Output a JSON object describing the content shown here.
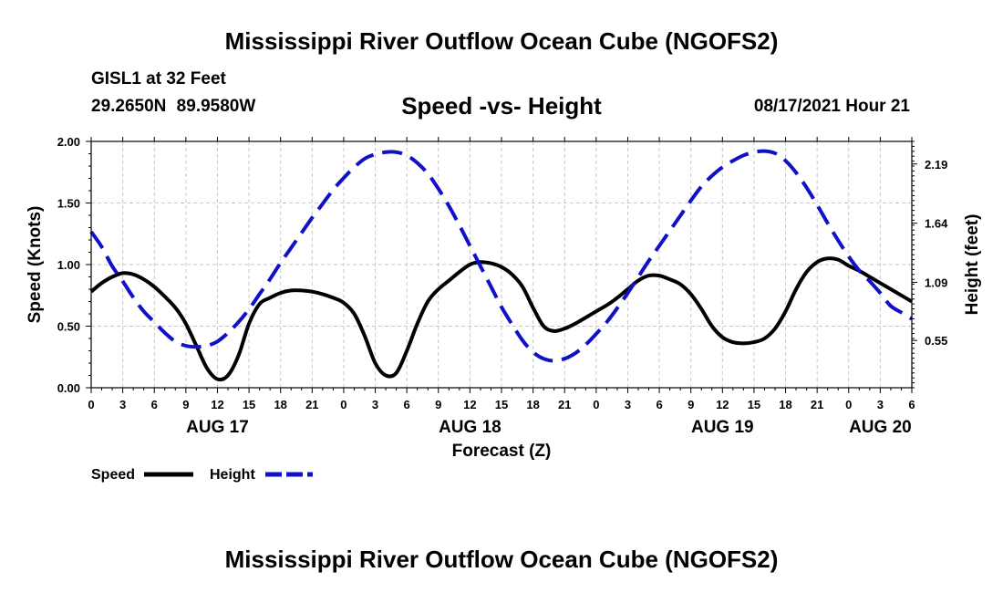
{
  "header": {
    "title": "Mississippi River Outflow Ocean Cube (NGOFS2)",
    "station": "GISL1 at 32 Feet",
    "coords": "29.2650N  89.9580W",
    "subtitle": "Speed -vs- Height",
    "timestamp": "08/17/2021 Hour 21"
  },
  "footer": {
    "title": "Mississippi River Outflow Ocean Cube (NGOFS2)"
  },
  "colors": {
    "speed": "#000000",
    "height": "#1010c8",
    "grid": "#c8c8c8"
  },
  "chart_data": {
    "type": "line",
    "title": "Speed -vs- Height",
    "xlabel": "Forecast (Z)",
    "ylabel": "Speed (Knots)",
    "y2label": "Height (feet)",
    "xlim": [
      0,
      78
    ],
    "ylim": [
      0,
      2.0
    ],
    "y2lim": [
      0.11,
      2.4
    ],
    "x_ticks": [
      0,
      3,
      6,
      9,
      12,
      15,
      18,
      21,
      24,
      27,
      30,
      33,
      36,
      39,
      42,
      45,
      48,
      51,
      54,
      57,
      60,
      63,
      66,
      69,
      72,
      75,
      78
    ],
    "x_tick_labels": [
      "0",
      "3",
      "6",
      "9",
      "12",
      "15",
      "18",
      "21",
      "0",
      "3",
      "6",
      "9",
      "12",
      "15",
      "18",
      "21",
      "0",
      "3",
      "6",
      "9",
      "12",
      "15",
      "18",
      "21",
      "0",
      "3",
      "6"
    ],
    "day_labels": [
      {
        "x": 12,
        "label": "AUG 17"
      },
      {
        "x": 36,
        "label": "AUG 18"
      },
      {
        "x": 60,
        "label": "AUG 19"
      },
      {
        "x": 75,
        "label": "AUG 20"
      }
    ],
    "y_ticks": [
      0,
      0.5,
      1.0,
      1.5,
      2.0
    ],
    "y_tick_labels": [
      "0.00",
      "0.50",
      "1.00",
      "1.50",
      "2.00"
    ],
    "y2_ticks": [
      0.55,
      1.09,
      1.64,
      2.19
    ],
    "y2_tick_labels": [
      "0.55",
      "1.09",
      "1.64",
      "2.19"
    ],
    "grid": true,
    "legend_position": "bottom-left",
    "series": [
      {
        "name": "Speed",
        "axis": "left",
        "style": "solid",
        "x": [
          0,
          1,
          2,
          3,
          4,
          5,
          6,
          7,
          8,
          9,
          10,
          11,
          12,
          13,
          14,
          15,
          16,
          17,
          18,
          19,
          20,
          21,
          22,
          23,
          24,
          25,
          26,
          27,
          28,
          29,
          30,
          31,
          32,
          33,
          34,
          35,
          36,
          37,
          38,
          39,
          40,
          41,
          42,
          43,
          44,
          45,
          46,
          47,
          48,
          49,
          50,
          51,
          52,
          53,
          54,
          55,
          56,
          57,
          58,
          59,
          60,
          61,
          62,
          63,
          64,
          65,
          66,
          67,
          68,
          69,
          70,
          71,
          72,
          73,
          74,
          75,
          76,
          77,
          78
        ],
        "values": [
          0.78,
          0.85,
          0.9,
          0.93,
          0.92,
          0.88,
          0.82,
          0.74,
          0.65,
          0.52,
          0.34,
          0.16,
          0.07,
          0.1,
          0.26,
          0.52,
          0.68,
          0.73,
          0.77,
          0.79,
          0.79,
          0.78,
          0.76,
          0.73,
          0.69,
          0.6,
          0.42,
          0.2,
          0.1,
          0.12,
          0.3,
          0.52,
          0.7,
          0.8,
          0.87,
          0.94,
          1.0,
          1.02,
          1.01,
          0.98,
          0.92,
          0.82,
          0.65,
          0.5,
          0.46,
          0.48,
          0.52,
          0.57,
          0.62,
          0.67,
          0.73,
          0.8,
          0.87,
          0.91,
          0.91,
          0.88,
          0.84,
          0.76,
          0.64,
          0.5,
          0.41,
          0.37,
          0.36,
          0.37,
          0.4,
          0.48,
          0.62,
          0.8,
          0.94,
          1.02,
          1.05,
          1.04,
          0.99,
          0.95,
          0.9,
          0.85,
          0.8,
          0.75,
          0.7
        ]
      },
      {
        "name": "Height",
        "axis": "right",
        "style": "dashed",
        "x": [
          0,
          1,
          2,
          3,
          4,
          5,
          6,
          7,
          8,
          9,
          10,
          11,
          12,
          13,
          14,
          15,
          16,
          17,
          18,
          19,
          20,
          21,
          22,
          23,
          24,
          25,
          26,
          27,
          28,
          29,
          30,
          31,
          32,
          33,
          34,
          35,
          36,
          37,
          38,
          39,
          40,
          41,
          42,
          43,
          44,
          45,
          46,
          47,
          48,
          49,
          50,
          51,
          52,
          53,
          54,
          55,
          56,
          57,
          58,
          59,
          60,
          61,
          62,
          63,
          64,
          65,
          66,
          67,
          68,
          69,
          70,
          71,
          72,
          73,
          74,
          75,
          76,
          77,
          78
        ],
        "values": [
          1.56,
          1.42,
          1.24,
          1.1,
          0.95,
          0.82,
          0.72,
          0.62,
          0.54,
          0.5,
          0.49,
          0.5,
          0.54,
          0.62,
          0.72,
          0.84,
          0.98,
          1.12,
          1.27,
          1.41,
          1.55,
          1.69,
          1.82,
          1.95,
          2.06,
          2.16,
          2.24,
          2.28,
          2.3,
          2.3,
          2.27,
          2.2,
          2.1,
          1.96,
          1.8,
          1.62,
          1.43,
          1.24,
          1.05,
          0.86,
          0.7,
          0.55,
          0.44,
          0.38,
          0.36,
          0.38,
          0.43,
          0.51,
          0.61,
          0.72,
          0.85,
          0.99,
          1.14,
          1.29,
          1.43,
          1.57,
          1.71,
          1.85,
          1.98,
          2.08,
          2.16,
          2.22,
          2.27,
          2.3,
          2.31,
          2.29,
          2.22,
          2.11,
          1.97,
          1.81,
          1.64,
          1.48,
          1.33,
          1.2,
          1.1,
          0.99,
          0.87,
          0.81,
          0.75
        ]
      }
    ]
  }
}
